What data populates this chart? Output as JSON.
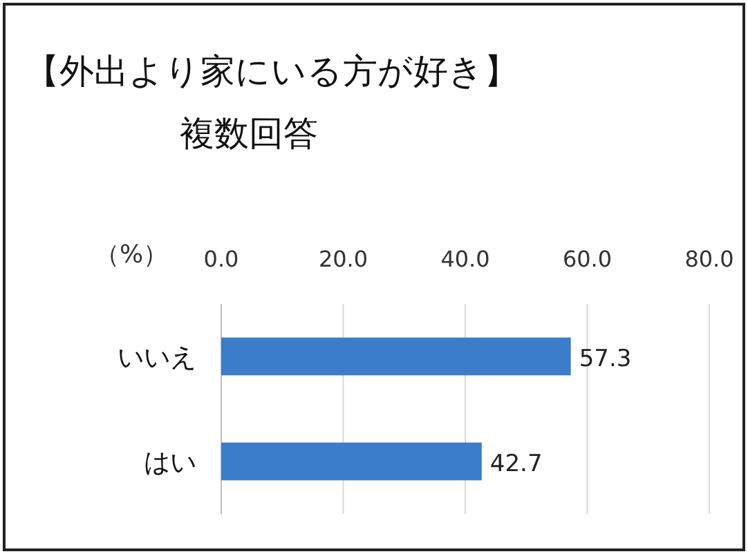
{
  "chart_data": {
    "type": "bar",
    "orientation": "horizontal",
    "title": "【外出より家にいる方が好き】",
    "subtitle": "複数回答",
    "xlabel": "（%）",
    "categories": [
      "いいえ",
      "はい"
    ],
    "values": [
      57.3,
      42.7
    ],
    "color": "#3b7dc8",
    "xlim": [
      0,
      80
    ],
    "xticks": [
      {
        "value": 0,
        "label": "0.0"
      },
      {
        "value": 20,
        "label": "20.0"
      },
      {
        "value": 40,
        "label": "40.0"
      },
      {
        "value": 60,
        "label": "60.0"
      },
      {
        "value": 80,
        "label": "80.0"
      }
    ],
    "grid": "x",
    "data_labels": true
  }
}
